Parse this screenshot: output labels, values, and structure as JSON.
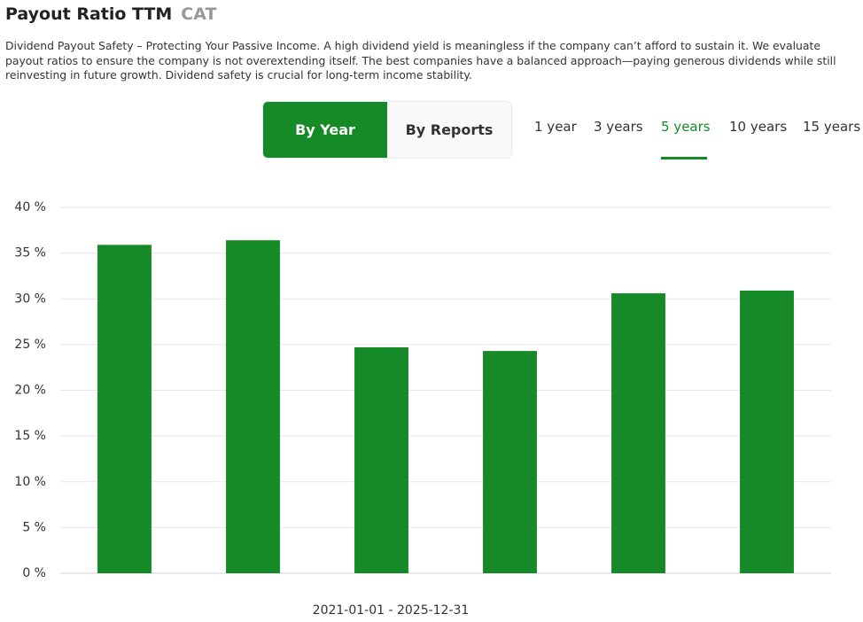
{
  "header": {
    "title": "Payout Ratio TTM",
    "ticker": "CAT",
    "description": "Dividend Payout Safety – Protecting Your Passive Income. A high dividend yield is meaningless if the company can’t afford to sustain it. We evaluate payout ratios to ensure the company is not overextending itself. The best companies have a balanced approach—paying generous dividends while still reinvesting in future growth. Dividend safety is crucial for long-term income stability."
  },
  "toggle": [
    "By Year",
    "By Reports"
  ],
  "periods": [
    "1 year",
    "3 years",
    "5 years",
    "10 years",
    "15 years"
  ],
  "chart_data": {
    "type": "bar",
    "categories": [
      null,
      null,
      null,
      null,
      null,
      null
    ],
    "values": [
      35.9,
      36.4,
      24.7,
      24.3,
      30.6,
      30.9
    ],
    "color": "#178a28",
    "ylim": [
      0,
      40
    ],
    "yticks": [
      {
        "value": 0,
        "label": "0 %"
      },
      {
        "value": 5,
        "label": "5 %"
      },
      {
        "value": 10,
        "label": "10 %"
      },
      {
        "value": 15,
        "label": "15 %"
      },
      {
        "value": 20,
        "label": "20 %"
      },
      {
        "value": 25,
        "label": "25 %"
      },
      {
        "value": 30,
        "label": "30 %"
      },
      {
        "value": 35,
        "label": "35 %"
      },
      {
        "value": 40,
        "label": "40 %"
      }
    ],
    "grid": true,
    "x_label": "2021-01-01 - 2025-12-31"
  }
}
